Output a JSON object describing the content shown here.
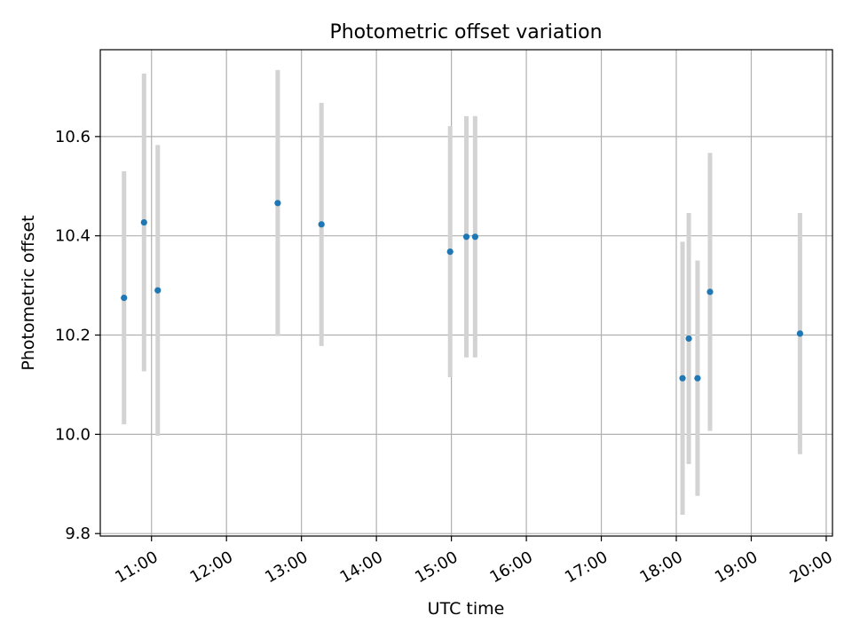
{
  "chart_data": {
    "type": "scatter",
    "title": "Photometric offset variation",
    "xlabel": "UTC time",
    "ylabel": "Photometric offset",
    "xlim": [
      "10:19",
      "20:05"
    ],
    "ylim": [
      9.795,
      10.775
    ],
    "x_ticks": [
      "11:00",
      "12:00",
      "13:00",
      "14:00",
      "15:00",
      "16:00",
      "17:00",
      "18:00",
      "19:00",
      "20:00"
    ],
    "y_ticks": [
      "9.8",
      "10.0",
      "10.2",
      "10.4",
      "10.6"
    ],
    "grid": true,
    "colors": {
      "point": "#1f77b4",
      "errorbar": "#d3d3d3",
      "grid": "#b0b0b0"
    },
    "points": [
      {
        "x": "10:38",
        "y": 10.275,
        "err": 0.255
      },
      {
        "x": "10:54",
        "y": 10.427,
        "err": 0.3
      },
      {
        "x": "11:05",
        "y": 10.29,
        "err": 0.293
      },
      {
        "x": "12:41",
        "y": 10.466,
        "err": 0.268
      },
      {
        "x": "13:16",
        "y": 10.423,
        "err": 0.245
      },
      {
        "x": "14:59",
        "y": 10.368,
        "err": 0.253
      },
      {
        "x": "15:12",
        "y": 10.398,
        "err": 0.243
      },
      {
        "x": "15:19",
        "y": 10.398,
        "err": 0.243
      },
      {
        "x": "18:05",
        "y": 10.113,
        "err": 0.275
      },
      {
        "x": "18:10",
        "y": 10.193,
        "err": 0.253
      },
      {
        "x": "18:17",
        "y": 10.113,
        "err": 0.237
      },
      {
        "x": "18:27",
        "y": 10.287,
        "err": 0.28
      },
      {
        "x": "19:39",
        "y": 10.203,
        "err": 0.243
      }
    ]
  }
}
